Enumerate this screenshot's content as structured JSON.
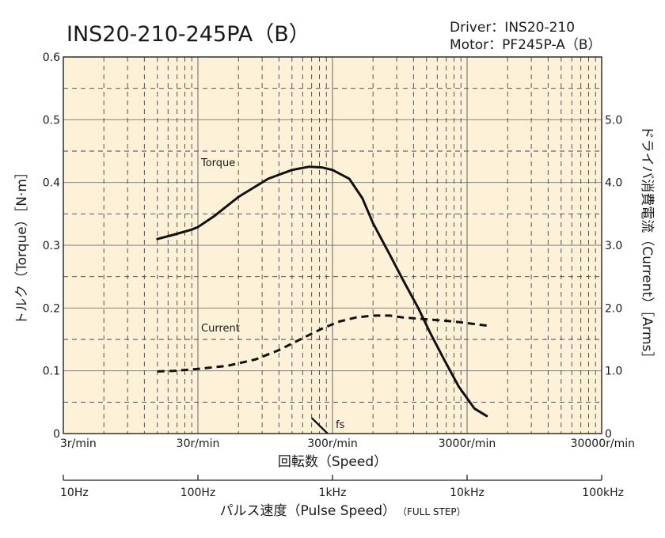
{
  "title": "INS20-210-245PA（B）",
  "info": {
    "driver": "Driver：INS20-210",
    "motor": "Motor：PF245P-A（B）"
  },
  "chart_data": {
    "type": "line",
    "x_scale": "log",
    "x": {
      "label": "回転数（Speed）",
      "unit": "r/min",
      "range": [
        3,
        30000
      ],
      "ticks": [
        3,
        30,
        300,
        3000,
        30000
      ],
      "tick_labels": [
        "3r/min",
        "30r/min",
        "300r/min",
        "3000r/min",
        "30000r/min"
      ]
    },
    "x2": {
      "label_main": "パルス速度（Pulse Speed）",
      "label_sub": "（FULL STEP）",
      "unit": "Hz",
      "range": [
        10,
        100000
      ],
      "ticks": [
        10,
        100,
        1000,
        10000,
        100000
      ],
      "tick_labels": [
        "10Hz",
        "100Hz",
        "1kHz",
        "10kHz",
        "100kHz"
      ]
    },
    "y_left": {
      "label": "トルク（Torque）［N·m］",
      "range": [
        0,
        0.6
      ],
      "ticks": [
        0,
        0.1,
        0.2,
        0.3,
        0.4,
        0.5,
        0.6
      ],
      "tick_labels": [
        "0",
        "0.1",
        "0.2",
        "0.3",
        "0.4",
        "0.5",
        "0.6"
      ]
    },
    "y_right": {
      "label": "ドライバ消費電流（Current）［Arms］",
      "range": [
        0,
        6
      ],
      "ticks": [
        0,
        1,
        2,
        3,
        4,
        5
      ],
      "tick_labels": [
        "0",
        "1.0",
        "2.0",
        "3.0",
        "4.0",
        "5.0"
      ]
    },
    "grid": true,
    "background": "#fdf1d8",
    "series": [
      {
        "name": "Torque",
        "axis": "left",
        "style": "solid",
        "x": [
          15,
          20,
          27,
          30,
          40,
          60,
          100,
          150,
          200,
          250,
          300,
          400,
          500,
          600,
          800,
          1000,
          1300,
          1600,
          2000,
          2600,
          3400,
          4200
        ],
        "y": [
          0.31,
          0.317,
          0.325,
          0.329,
          0.347,
          0.377,
          0.406,
          0.42,
          0.425,
          0.424,
          0.42,
          0.406,
          0.375,
          0.335,
          0.285,
          0.245,
          0.2,
          0.16,
          0.12,
          0.075,
          0.04,
          0.028
        ]
      },
      {
        "name": "Current",
        "axis": "right",
        "style": "dashed",
        "x": [
          15,
          20,
          30,
          50,
          80,
          120,
          180,
          250,
          330,
          450,
          600,
          800,
          1000,
          1500,
          2000,
          2500,
          3000,
          4200
        ],
        "y": [
          0.99,
          1.0,
          1.03,
          1.08,
          1.18,
          1.33,
          1.52,
          1.67,
          1.78,
          1.85,
          1.88,
          1.88,
          1.85,
          1.82,
          1.8,
          1.78,
          1.76,
          1.72
        ]
      }
    ],
    "annotations": [
      {
        "label": "fs",
        "x2_start": 700,
        "x2_end": 920,
        "y_start": 0.025,
        "y_end": 0.0
      }
    ]
  }
}
